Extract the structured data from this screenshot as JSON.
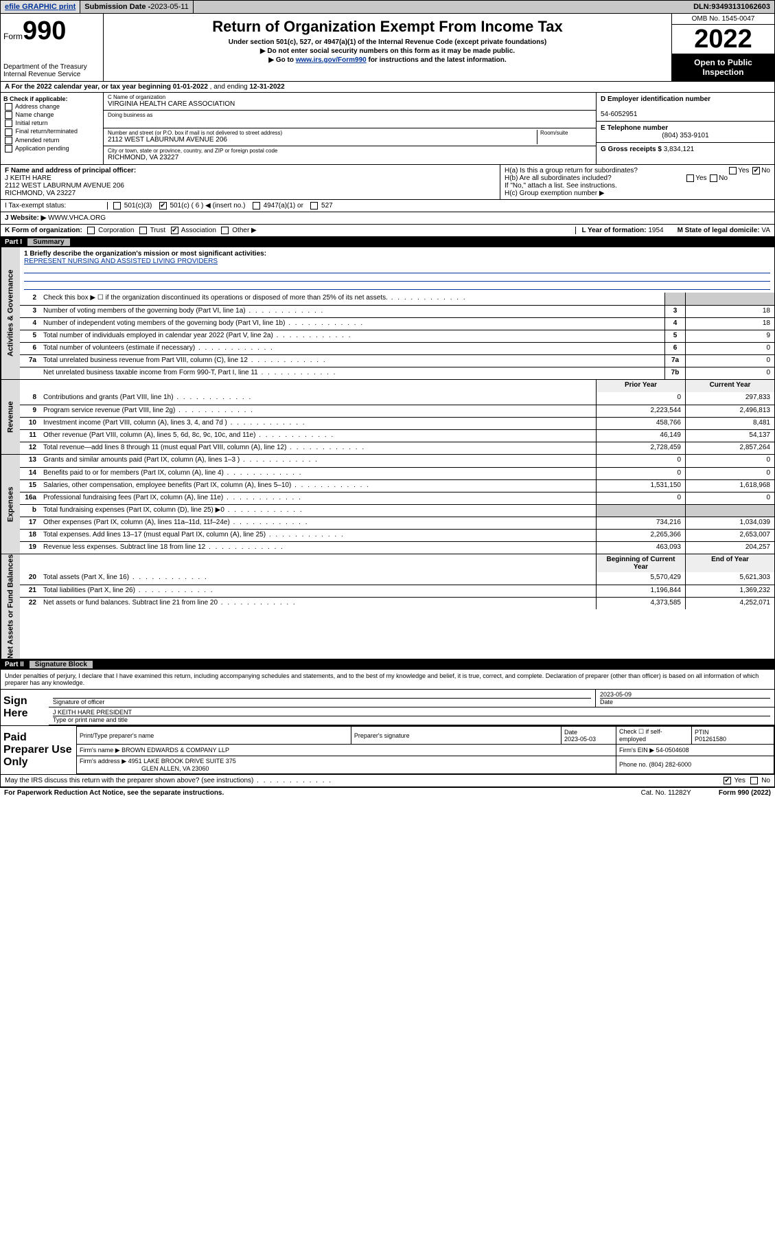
{
  "topbar": {
    "efile": "efile GRAPHIC print",
    "sub_label": "Submission Date - ",
    "sub_date": "2023-05-11",
    "dln_label": "DLN: ",
    "dln": "93493131062603"
  },
  "header": {
    "form_label": "Form",
    "form_no": "990",
    "dept": "Department of the Treasury",
    "irs": "Internal Revenue Service",
    "title": "Return of Organization Exempt From Income Tax",
    "sub1": "Under section 501(c), 527, or 4947(a)(1) of the Internal Revenue Code (except private foundations)",
    "sub2": "Do not enter social security numbers on this form as it may be made public.",
    "sub3_a": "Go to ",
    "sub3_link": "www.irs.gov/Form990",
    "sub3_b": " for instructions and the latest information.",
    "omb": "OMB No. 1545-0047",
    "year": "2022",
    "open": "Open to Public Inspection"
  },
  "row_a": {
    "text_a": "A For the 2022 calendar year, or tax year beginning ",
    "begin": "01-01-2022",
    "text_b": " , and ending ",
    "end": "12-31-2022"
  },
  "col_b": {
    "hdr": "B Check if applicable:",
    "items": [
      "Address change",
      "Name change",
      "Initial return",
      "Final return/terminated",
      "Amended return",
      "Application pending"
    ]
  },
  "col_c": {
    "name_lbl": "C Name of organization",
    "name": "VIRGINIA HEALTH CARE ASSOCIATION",
    "dba_lbl": "Doing business as",
    "dba": "",
    "street_lbl": "Number and street (or P.O. box if mail is not delivered to street address)",
    "room_lbl": "Room/suite",
    "street": "2112 WEST LABURNUM AVENUE 206",
    "city_lbl": "City or town, state or province, country, and ZIP or foreign postal code",
    "city": "RICHMOND, VA  23227"
  },
  "col_de": {
    "d_lbl": "D Employer identification number",
    "d_val": "54-6052951",
    "e_lbl": "E Telephone number",
    "e_val": "(804) 353-9101",
    "g_lbl": "G Gross receipts $ ",
    "g_val": "3,834,121"
  },
  "row_f": {
    "f_lbl": "F Name and address of principal officer:",
    "f_name": "J KEITH HARE",
    "f_addr1": "2112 WEST LABURNUM AVENUE 206",
    "f_addr2": "RICHMOND, VA  23227",
    "ha_lbl": "H(a) Is this a group return for subordinates?",
    "ha_yes": "Yes",
    "ha_no": "No",
    "hb_lbl": "H(b) Are all subordinates included?",
    "hb_note": "If \"No,\" attach a list. See instructions.",
    "hc_lbl": "H(c) Group exemption number ▶"
  },
  "row_i": {
    "lbl": "I    Tax-exempt status:",
    "opts": [
      "501(c)(3)",
      "501(c) ( 6 ) ◀ (insert no.)",
      "4947(a)(1) or",
      "527"
    ]
  },
  "row_j": {
    "lbl": "J   Website: ▶ ",
    "val": "WWW.VHCA.ORG"
  },
  "row_k": {
    "lbl": "K Form of organization:",
    "opts": [
      "Corporation",
      "Trust",
      "Association",
      "Other ▶"
    ],
    "l_lbl": "L Year of formation: ",
    "l_val": "1954",
    "m_lbl": "M State of legal domicile: ",
    "m_val": "VA"
  },
  "parts": {
    "p1": {
      "num": "Part I",
      "title": "Summary"
    },
    "p2": {
      "num": "Part II",
      "title": "Signature Block"
    }
  },
  "mission": {
    "line1_lbl": "1  Briefly describe the organization's mission or most significant activities:",
    "line1_val": "REPRESENT NURSING AND ASSISTED LIVING PROVIDERS"
  },
  "gov_lines": [
    {
      "n": "2",
      "d": "Check this box ▶ ☐ if the organization discontinued its operations or disposed of more than 25% of its net assets.",
      "b": "",
      "v": ""
    },
    {
      "n": "3",
      "d": "Number of voting members of the governing body (Part VI, line 1a)",
      "b": "3",
      "v": "18"
    },
    {
      "n": "4",
      "d": "Number of independent voting members of the governing body (Part VI, line 1b)",
      "b": "4",
      "v": "18"
    },
    {
      "n": "5",
      "d": "Total number of individuals employed in calendar year 2022 (Part V, line 2a)",
      "b": "5",
      "v": "9"
    },
    {
      "n": "6",
      "d": "Total number of volunteers (estimate if necessary)",
      "b": "6",
      "v": "0"
    },
    {
      "n": "7a",
      "d": "Total unrelated business revenue from Part VIII, column (C), line 12",
      "b": "7a",
      "v": "0"
    },
    {
      "n": "",
      "d": "Net unrelated business taxable income from Form 990-T, Part I, line 11",
      "b": "7b",
      "v": "0"
    }
  ],
  "two_col_hdr": {
    "py": "Prior Year",
    "cy": "Current Year"
  },
  "two_col_hdr2": {
    "py": "Beginning of Current Year",
    "cy": "End of Year"
  },
  "rev_lines": [
    {
      "n": "8",
      "d": "Contributions and grants (Part VIII, line 1h)",
      "p": "0",
      "c": "297,833"
    },
    {
      "n": "9",
      "d": "Program service revenue (Part VIII, line 2g)",
      "p": "2,223,544",
      "c": "2,496,813"
    },
    {
      "n": "10",
      "d": "Investment income (Part VIII, column (A), lines 3, 4, and 7d )",
      "p": "458,766",
      "c": "8,481"
    },
    {
      "n": "11",
      "d": "Other revenue (Part VIII, column (A), lines 5, 6d, 8c, 9c, 10c, and 11e)",
      "p": "46,149",
      "c": "54,137"
    },
    {
      "n": "12",
      "d": "Total revenue—add lines 8 through 11 (must equal Part VIII, column (A), line 12)",
      "p": "2,728,459",
      "c": "2,857,264"
    }
  ],
  "exp_lines": [
    {
      "n": "13",
      "d": "Grants and similar amounts paid (Part IX, column (A), lines 1–3 )",
      "p": "0",
      "c": "0"
    },
    {
      "n": "14",
      "d": "Benefits paid to or for members (Part IX, column (A), line 4)",
      "p": "0",
      "c": "0"
    },
    {
      "n": "15",
      "d": "Salaries, other compensation, employee benefits (Part IX, column (A), lines 5–10)",
      "p": "1,531,150",
      "c": "1,618,968"
    },
    {
      "n": "16a",
      "d": "Professional fundraising fees (Part IX, column (A), line 11e)",
      "p": "0",
      "c": "0"
    },
    {
      "n": "b",
      "d": "Total fundraising expenses (Part IX, column (D), line 25) ▶0",
      "p": "",
      "c": "",
      "shade": true
    },
    {
      "n": "17",
      "d": "Other expenses (Part IX, column (A), lines 11a–11d, 11f–24e)",
      "p": "734,216",
      "c": "1,034,039"
    },
    {
      "n": "18",
      "d": "Total expenses. Add lines 13–17 (must equal Part IX, column (A), line 25)",
      "p": "2,265,366",
      "c": "2,653,007"
    },
    {
      "n": "19",
      "d": "Revenue less expenses. Subtract line 18 from line 12",
      "p": "463,093",
      "c": "204,257"
    }
  ],
  "net_lines": [
    {
      "n": "20",
      "d": "Total assets (Part X, line 16)",
      "p": "5,570,429",
      "c": "5,621,303"
    },
    {
      "n": "21",
      "d": "Total liabilities (Part X, line 26)",
      "p": "1,196,844",
      "c": "1,369,232"
    },
    {
      "n": "22",
      "d": "Net assets or fund balances. Subtract line 21 from line 20",
      "p": "4,373,585",
      "c": "4,252,071"
    }
  ],
  "vtabs": {
    "gov": "Activities & Governance",
    "rev": "Revenue",
    "exp": "Expenses",
    "net": "Net Assets or Fund Balances"
  },
  "sig": {
    "perjury": "Under penalties of perjury, I declare that I have examined this return, including accompanying schedules and statements, and to the best of my knowledge and belief, it is true, correct, and complete. Declaration of preparer (other than officer) is based on all information of which preparer has any knowledge.",
    "sign_here": "Sign Here",
    "sig_officer_lbl": "Signature of officer",
    "date_lbl": "Date",
    "sig_date": "2023-05-09",
    "officer_name": "J KEITH HARE PRESIDENT",
    "officer_name_lbl": "Type or print name and title",
    "paid": "Paid Preparer Use Only",
    "prep_name_lbl": "Print/Type preparer's name",
    "prep_sig_lbl": "Preparer's signature",
    "prep_date_lbl": "Date",
    "prep_date": "2023-05-03",
    "self_lbl": "Check ☐ if self-employed",
    "ptin_lbl": "PTIN",
    "ptin": "P01261580",
    "firm_name_lbl": "Firm's name   ▶ ",
    "firm_name": "BROWN EDWARDS & COMPANY LLP",
    "firm_ein_lbl": "Firm's EIN ▶ ",
    "firm_ein": "54-0504608",
    "firm_addr_lbl": "Firm's address ▶ ",
    "firm_addr1": "4951 LAKE BROOK DRIVE SUITE 375",
    "firm_addr2": "GLEN ALLEN, VA  23060",
    "firm_phone_lbl": "Phone no. ",
    "firm_phone": "(804) 282-6000",
    "discuss": "May the IRS discuss this return with the preparer shown above? (see instructions)",
    "yes": "Yes",
    "no": "No"
  },
  "footer": {
    "pra": "For Paperwork Reduction Act Notice, see the separate instructions.",
    "cat": "Cat. No. 11282Y",
    "form": "Form 990 (2022)"
  }
}
